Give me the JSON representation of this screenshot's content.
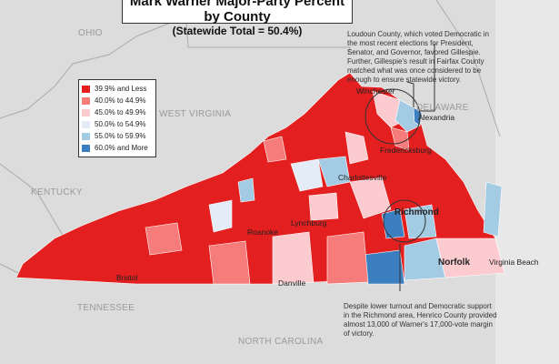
{
  "title": {
    "line1": "Mark Warner Major-Party Percent by County",
    "line2": "(Statewide Total = 50.4%)"
  },
  "states": [
    "OHIO",
    "WEST VIRGINIA",
    "KENTUCKY",
    "TENNESSEE",
    "NORTH CAROLINA",
    "DELAWARE"
  ],
  "legend": [
    {
      "label": "39.9% and Less",
      "color": "#e3201f"
    },
    {
      "label": "40.0% to 44.9%",
      "color": "#f67c7c"
    },
    {
      "label": "45.0% to 49.9%",
      "color": "#fccbd0"
    },
    {
      "label": "50.0% to 54.9%",
      "color": "#e3ecf7"
    },
    {
      "label": "55.0% to 59.9%",
      "color": "#a3cbe3"
    },
    {
      "label": "60.0% and More",
      "color": "#3b7fc1"
    }
  ],
  "cities": [
    "Winchester",
    "Alexandria",
    "Fredericksburg",
    "Charlottesville",
    "Richmond",
    "Lynchburg",
    "Roanoke",
    "Bristol",
    "Danville",
    "Norfolk",
    "Virginia Beach"
  ],
  "notes": {
    "loudoun": "Loudoun County, which voted Democratic in the most recent elections for President, Senator, and Governor, favored Gillespie. Further, Gillespie's result in Fairfax County matched what was once considered to be enough to ensure statewide victory.",
    "henrico": "Despite lower turnout and Democratic support in the Richmond area, Henrico County provided almost 13,000 of Warner's 17,000-vote margin of victory."
  }
}
